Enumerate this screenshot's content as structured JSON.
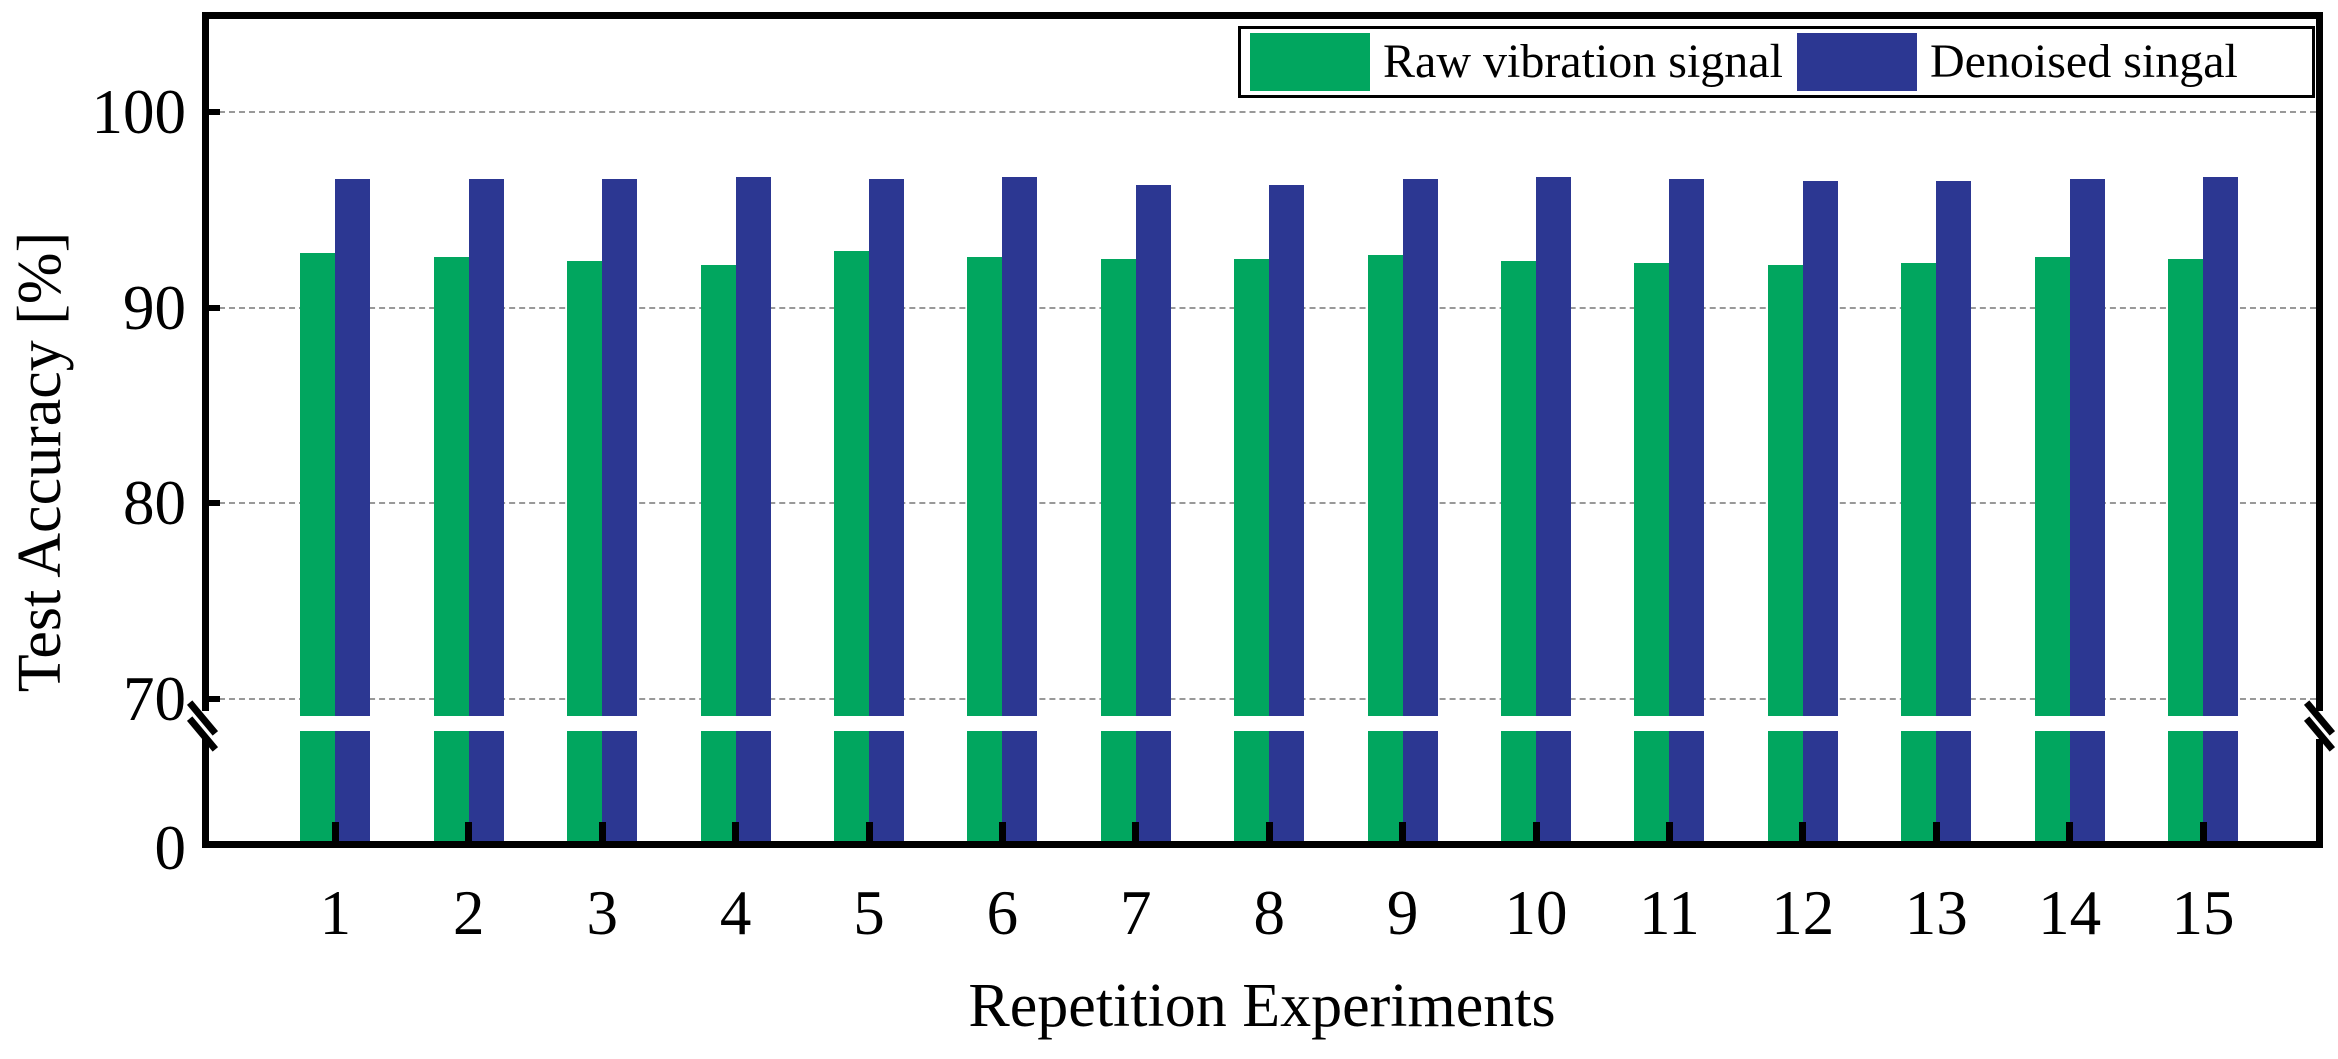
{
  "figure": {
    "background": "#ffffff"
  },
  "chart_data": {
    "type": "bar",
    "title": "",
    "xlabel": "Repetition Experiments",
    "ylabel": "Test Accuracy [%]",
    "categories": [
      "1",
      "2",
      "3",
      "4",
      "5",
      "6",
      "7",
      "8",
      "9",
      "10",
      "11",
      "12",
      "13",
      "14",
      "15"
    ],
    "series": [
      {
        "name": "Raw vibration signal",
        "color": "#01A65F",
        "values": [
          92.8,
          92.6,
          92.4,
          92.2,
          92.9,
          92.6,
          92.5,
          92.5,
          92.7,
          92.4,
          92.3,
          92.2,
          92.3,
          92.6,
          92.5
        ]
      },
      {
        "name": "Denoised singal",
        "color": "#2C3792",
        "values": [
          96.6,
          96.6,
          96.6,
          96.7,
          96.6,
          96.7,
          96.3,
          96.3,
          96.6,
          96.7,
          96.6,
          96.5,
          96.5,
          96.6,
          96.7
        ]
      }
    ],
    "y_axis": {
      "tick_values": [
        70,
        80,
        90,
        100
      ],
      "tick_labels": [
        "70",
        "80",
        "90",
        "100"
      ],
      "origin_label": "0",
      "broken_axis": true,
      "grid_style": "dashed",
      "grid_color": "#999999",
      "ylim_display": [
        70,
        105
      ]
    },
    "legend": {
      "position": "top-right",
      "border": true
    }
  }
}
